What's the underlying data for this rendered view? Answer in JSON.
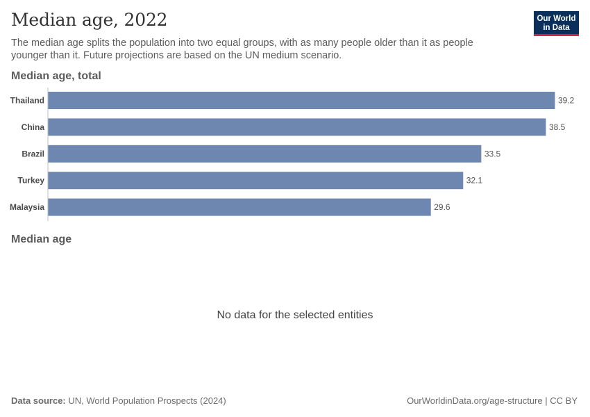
{
  "header": {
    "title": "Median age, 2022",
    "subtitle": "The median age splits the population into two equal groups, with as many people older than it as people younger than it. Future projections are based on the UN medium scenario.",
    "logo_line1": "Our World",
    "logo_line2": "in Data"
  },
  "section1_title": "Median age, total",
  "section2_title": "Median age",
  "no_data_text": "No data for the selected entities",
  "footer": {
    "source_label": "Data source:",
    "source_text": "UN, World Population Prospects (2024)",
    "url_text": "OurWorldinData.org/age-structure | CC BY"
  },
  "colors": {
    "bar": "#6d87b1",
    "axis": "#bdbdbd",
    "brand": "#0b2f5b",
    "brand_accent": "#c82b3a"
  },
  "chart_data": {
    "type": "bar",
    "orientation": "horizontal",
    "title": "Median age, total",
    "categories": [
      "Thailand",
      "China",
      "Brazil",
      "Turkey",
      "Malaysia"
    ],
    "values": [
      39.2,
      38.5,
      33.5,
      32.1,
      29.6
    ],
    "value_labels": [
      "39.2",
      "38.5",
      "33.5",
      "32.1",
      "29.6"
    ],
    "xlim": [
      0,
      39.2
    ],
    "grid": false
  }
}
